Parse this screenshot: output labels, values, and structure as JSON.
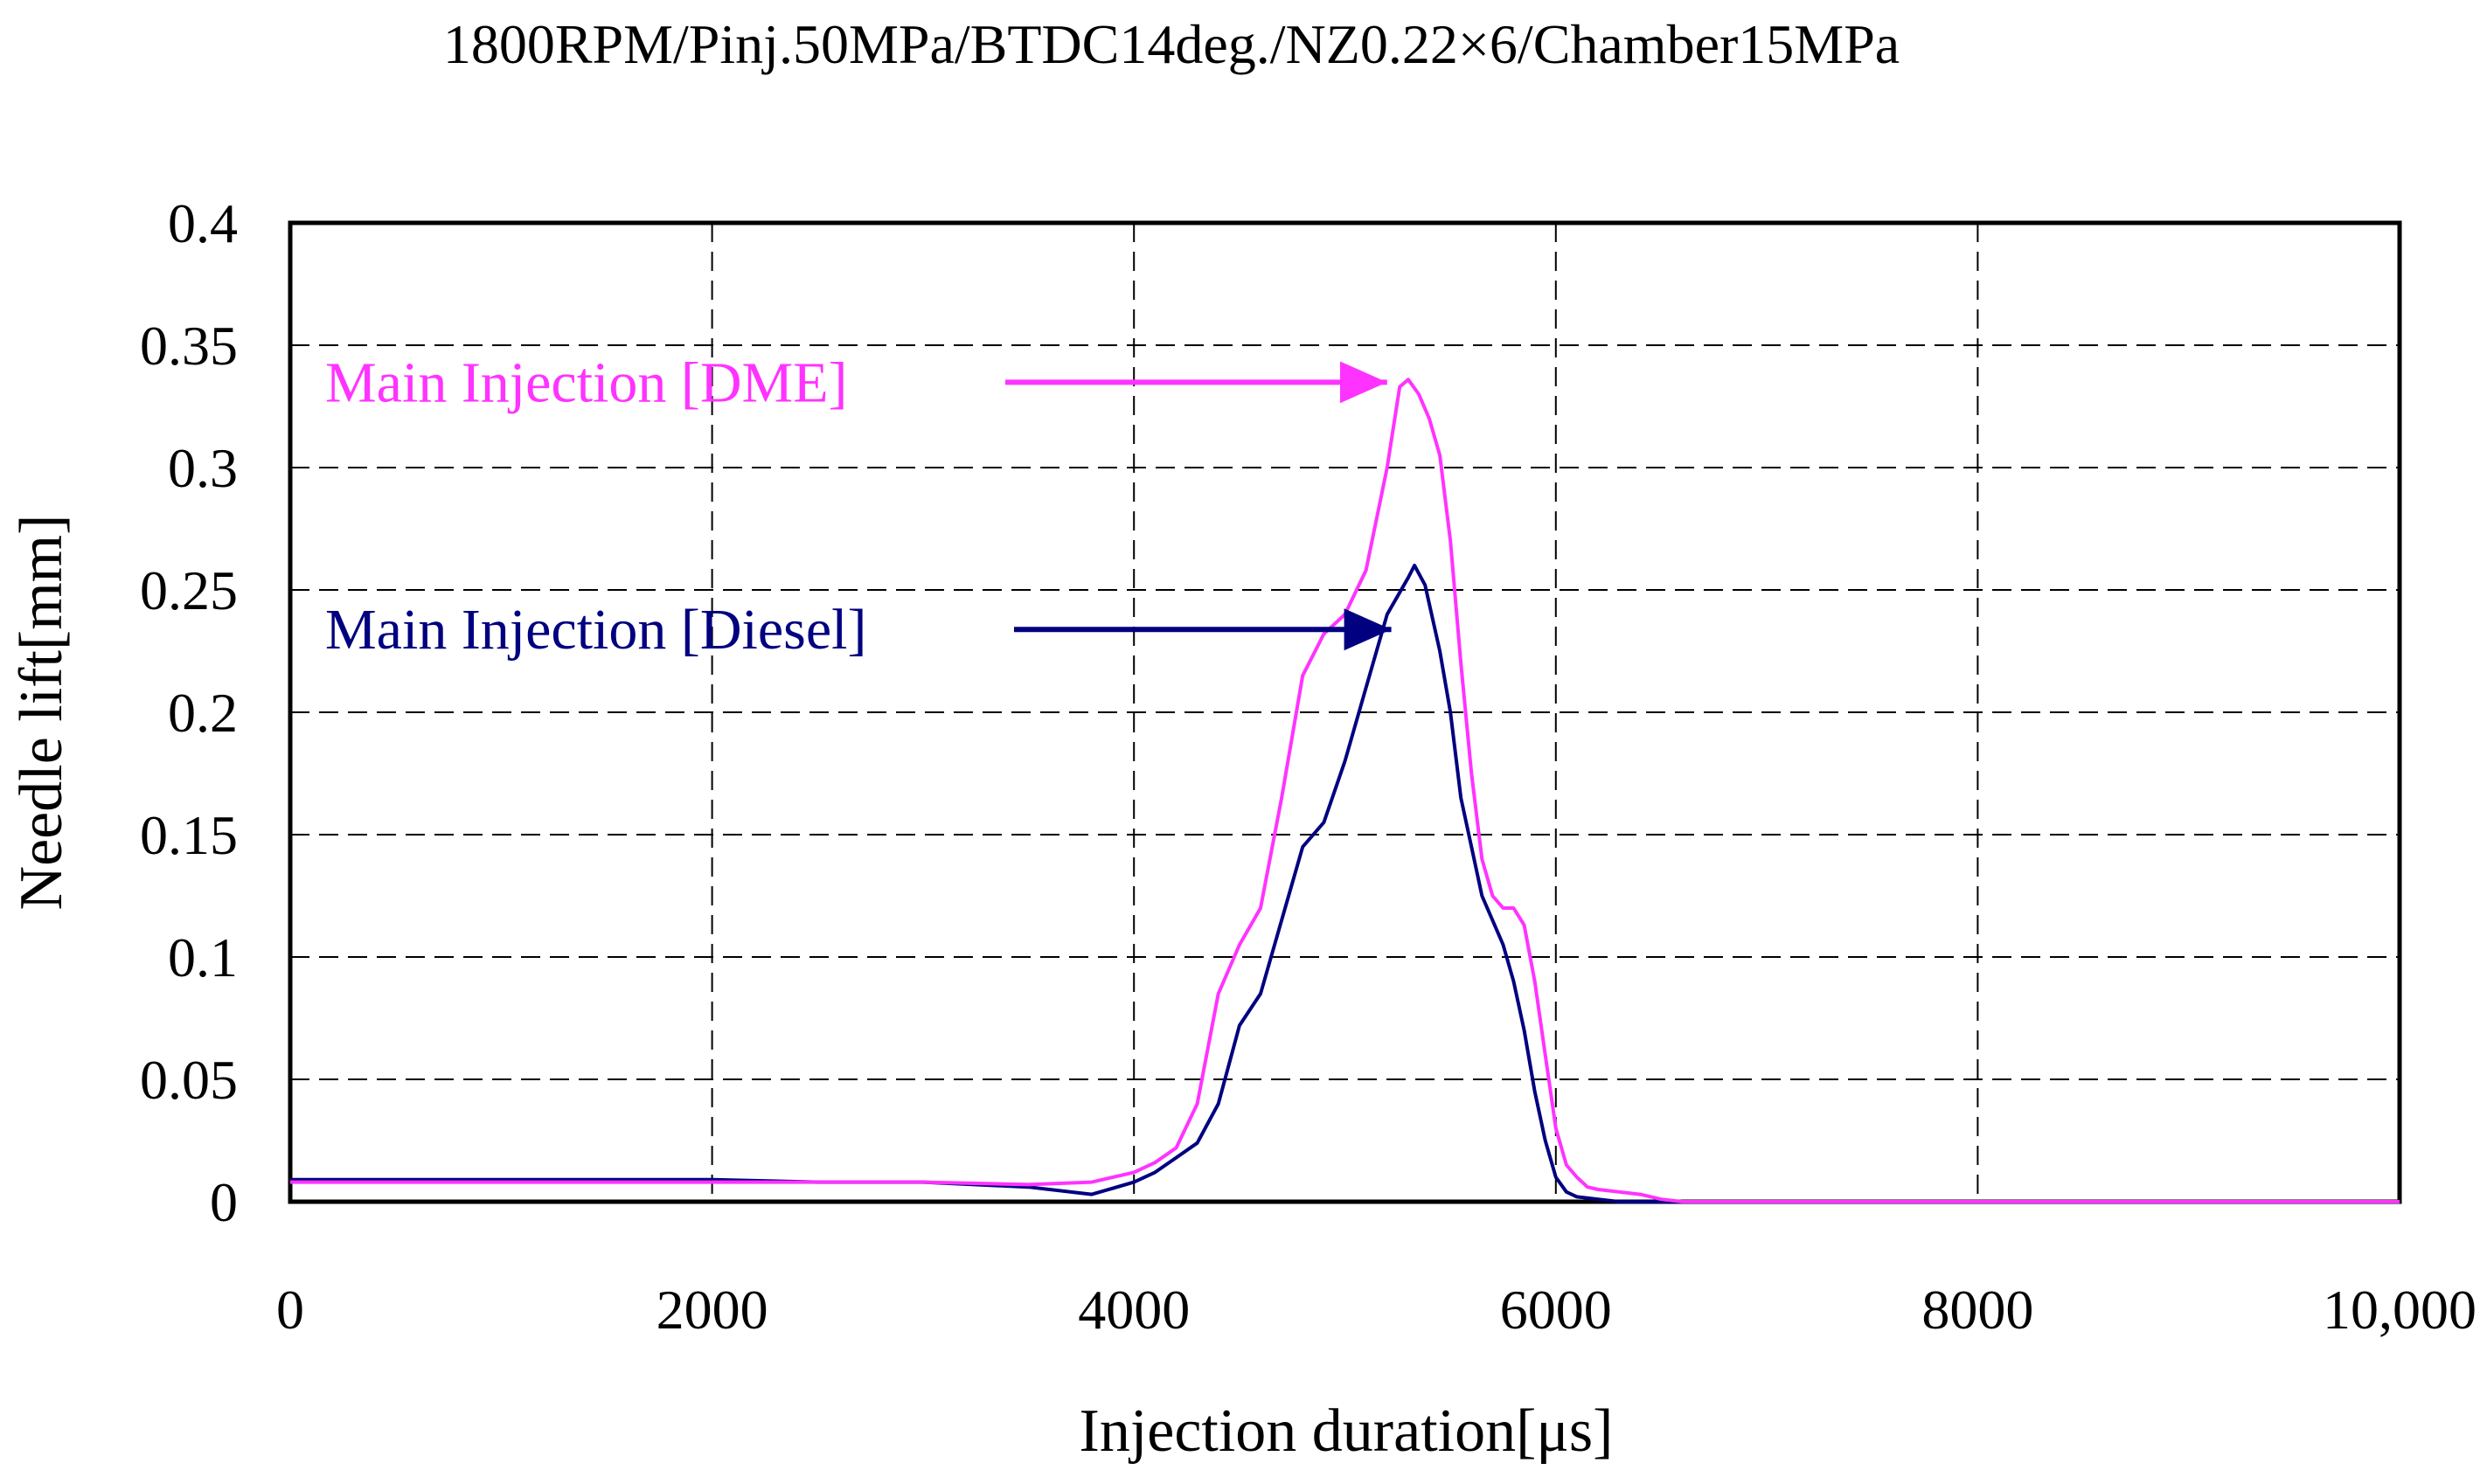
{
  "chart_data": {
    "type": "line",
    "title": "1800RPM/Pinj.50MPa/BTDC14deg./NZ0.22×6/Chamber15MPa",
    "xlabel": "Injection duration[μs]",
    "ylabel": "Needle lift[mm]",
    "xlim": [
      0,
      10000
    ],
    "ylim": [
      0,
      0.4
    ],
    "grid": true,
    "x_ticks": [
      0,
      2000,
      4000,
      6000,
      8000,
      10000
    ],
    "x_tick_labels": [
      "0",
      "2000",
      "4000",
      "6000",
      "8000",
      "10,000"
    ],
    "y_ticks": [
      0,
      0.05,
      0.1,
      0.15,
      0.2,
      0.25,
      0.3,
      0.35,
      0.4
    ],
    "y_tick_labels": [
      "0",
      "0.05",
      "0.1",
      "0.15",
      "0.2",
      "0.25",
      "0.3",
      "0.35",
      "0.4"
    ],
    "series": [
      {
        "name": "Main Injection [DME]",
        "color": "#ff33ff",
        "x": [
          0,
          500,
          1000,
          1500,
          2000,
          2500,
          3000,
          3500,
          3800,
          4000,
          4100,
          4200,
          4300,
          4400,
          4500,
          4600,
          4700,
          4800,
          4900,
          5000,
          5100,
          5200,
          5260,
          5300,
          5350,
          5400,
          5450,
          5500,
          5550,
          5600,
          5650,
          5700,
          5750,
          5800,
          5850,
          5900,
          5950,
          6000,
          6050,
          6100,
          6150,
          6200,
          6300,
          6400,
          6500,
          6600,
          8000,
          10000
        ],
        "values": [
          0.008,
          0.008,
          0.008,
          0.008,
          0.008,
          0.008,
          0.008,
          0.007,
          0.008,
          0.012,
          0.016,
          0.022,
          0.04,
          0.085,
          0.105,
          0.12,
          0.165,
          0.215,
          0.232,
          0.24,
          0.258,
          0.3,
          0.333,
          0.336,
          0.33,
          0.32,
          0.305,
          0.27,
          0.22,
          0.175,
          0.14,
          0.125,
          0.12,
          0.12,
          0.113,
          0.09,
          0.06,
          0.03,
          0.015,
          0.01,
          0.006,
          0.005,
          0.004,
          0.003,
          0.001,
          0,
          0,
          0
        ]
      },
      {
        "name": "Main Injection [Diesel]",
        "color": "#000080",
        "x": [
          0,
          500,
          1000,
          1500,
          2000,
          2500,
          3000,
          3500,
          3800,
          4000,
          4100,
          4200,
          4300,
          4400,
          4500,
          4600,
          4700,
          4800,
          4900,
          5000,
          5100,
          5200,
          5300,
          5330,
          5380,
          5450,
          5500,
          5550,
          5600,
          5650,
          5700,
          5750,
          5800,
          5850,
          5900,
          5950,
          6000,
          6050,
          6100,
          6200,
          6300,
          7000,
          10000
        ],
        "values": [
          0.009,
          0.009,
          0.009,
          0.009,
          0.009,
          0.008,
          0.008,
          0.006,
          0.003,
          0.008,
          0.012,
          0.018,
          0.024,
          0.04,
          0.072,
          0.085,
          0.115,
          0.145,
          0.155,
          0.18,
          0.21,
          0.24,
          0.255,
          0.26,
          0.252,
          0.225,
          0.2,
          0.165,
          0.145,
          0.125,
          0.115,
          0.105,
          0.09,
          0.07,
          0.045,
          0.025,
          0.01,
          0.004,
          0.002,
          0.001,
          0,
          0,
          0
        ]
      }
    ],
    "annotations": [
      {
        "text": "Main Injection [DME]",
        "color": "#ff33ff",
        "arrow_to": [
          5200,
          0.322
        ]
      },
      {
        "text": "Main Injection [Diesel]",
        "color": "#000080",
        "arrow_to": [
          5220,
          0.225
        ]
      }
    ]
  }
}
